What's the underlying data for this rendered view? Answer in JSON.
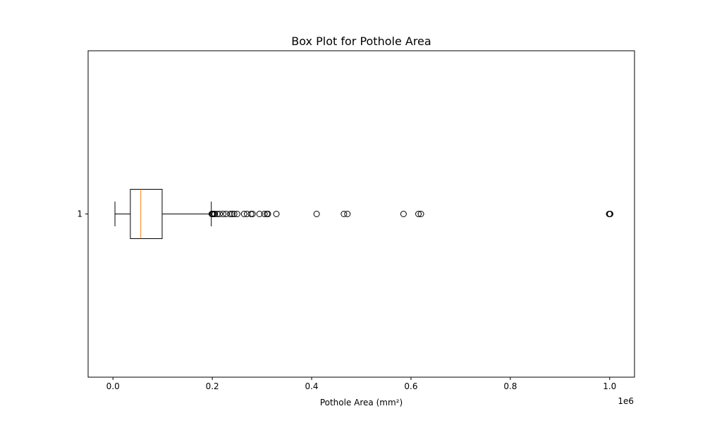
{
  "chart_data": {
    "type": "box",
    "orientation": "horizontal",
    "title": "Box Plot for Pothole Area",
    "xlabel": "Pothole Area (mm²)",
    "ylabel": "",
    "x_offset_label": "1e6",
    "xlim": [
      -0.05,
      1.05
    ],
    "x_ticks": [
      0.0,
      0.2,
      0.4,
      0.6,
      0.8,
      1.0
    ],
    "x_tick_labels": [
      "0.0",
      "0.2",
      "0.4",
      "0.6",
      "0.8",
      "1.0"
    ],
    "categories": [
      "1"
    ],
    "grid": false,
    "legend": "none",
    "boxes": [
      {
        "label": "1",
        "whisker_low": 0.004,
        "q1": 0.035,
        "median": 0.056,
        "q3": 0.099,
        "whisker_high": 0.198,
        "outliers": [
          0.199,
          0.2,
          0.201,
          0.203,
          0.205,
          0.21,
          0.215,
          0.222,
          0.228,
          0.236,
          0.24,
          0.244,
          0.25,
          0.264,
          0.27,
          0.278,
          0.281,
          0.295,
          0.305,
          0.31,
          0.312,
          0.329,
          0.41,
          0.465,
          0.472,
          0.585,
          0.615,
          0.62,
          0.999,
          1.0,
          1.001
        ]
      }
    ],
    "colors": {
      "box": "#000000",
      "median": "#ff7f0e",
      "outlier": "#000000"
    }
  }
}
